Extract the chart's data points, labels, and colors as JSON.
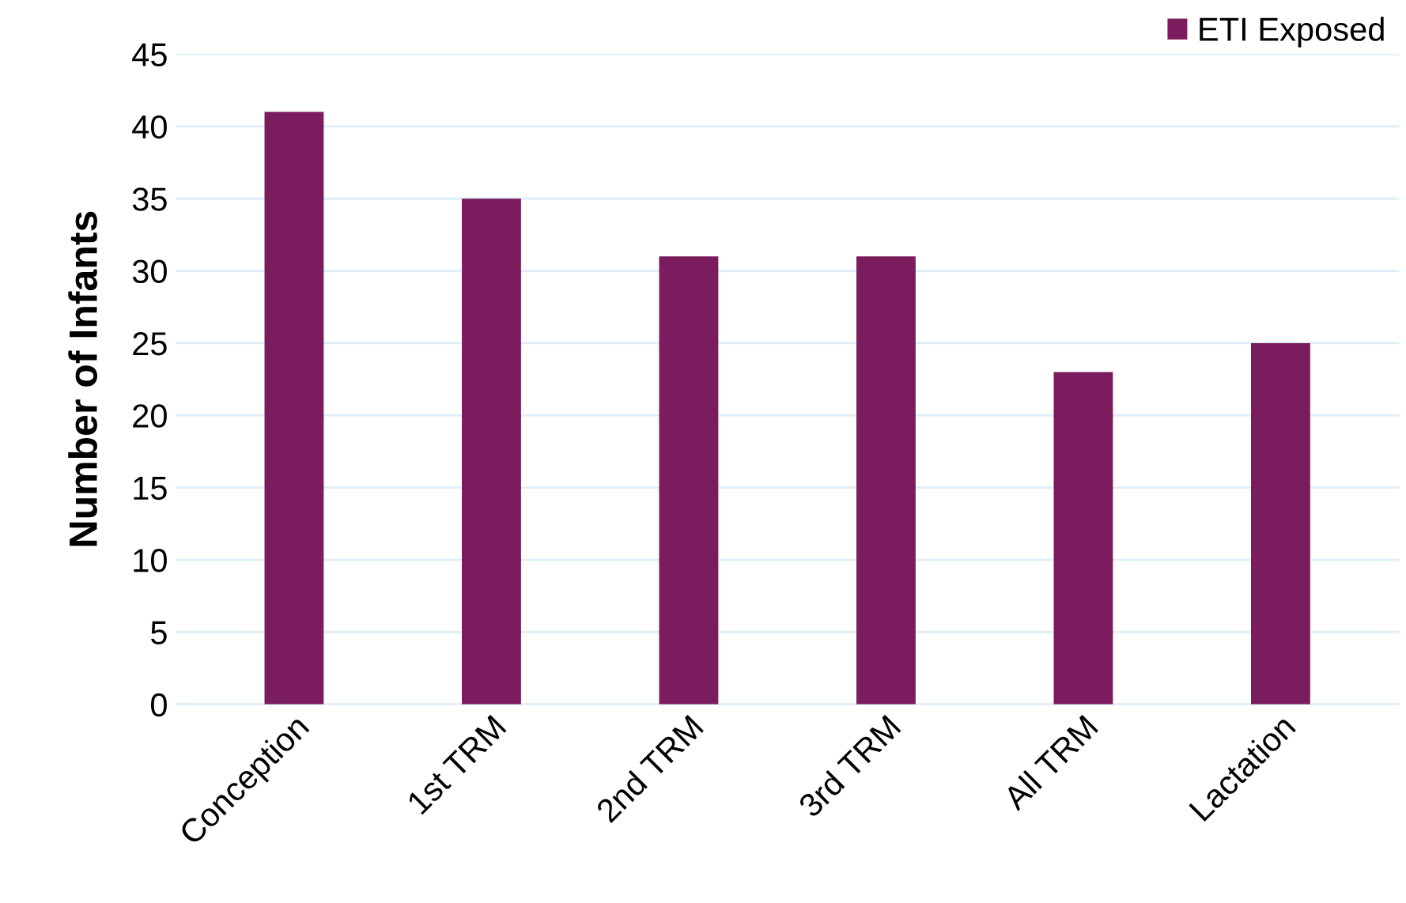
{
  "chart_data": {
    "type": "bar",
    "ylabel": "Number of Infants",
    "categories": [
      "Conception",
      "1st TRM",
      "2nd TRM",
      "3rd TRM",
      "All TRM",
      "Lactation"
    ],
    "series": [
      {
        "name": "ETI Exposed",
        "color": "#7b1c5e",
        "values": [
          41,
          35,
          31,
          31,
          23,
          25
        ]
      }
    ],
    "ylim": [
      0,
      45
    ],
    "yticks": [
      0,
      5,
      10,
      15,
      20,
      25,
      30,
      35,
      40,
      45
    ],
    "grid": "y",
    "legend": "top right"
  }
}
